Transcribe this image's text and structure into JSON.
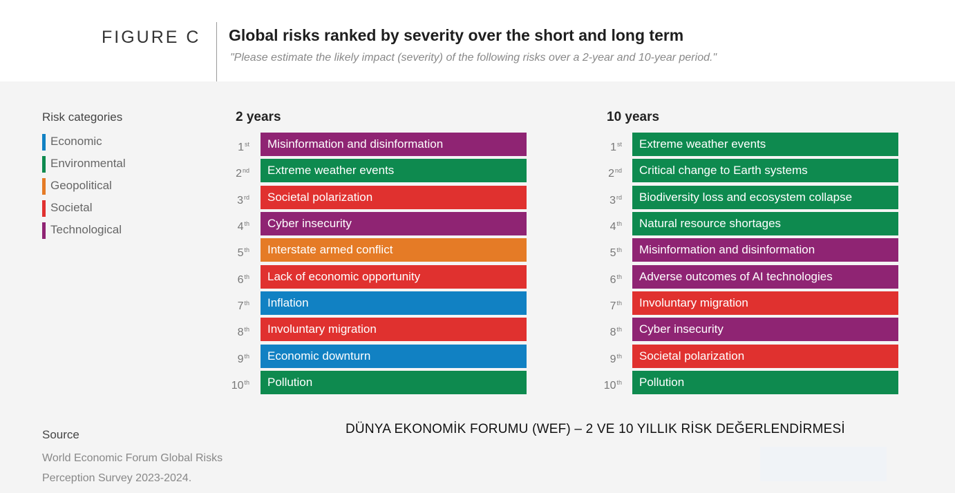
{
  "header": {
    "figure_label": "FIGURE C",
    "title": "Global risks ranked by severity over the short and long term",
    "subtitle": "\"Please estimate the likely impact (severity) of the following risks over a 2-year and 10-year period.\""
  },
  "legend": {
    "title": "Risk categories",
    "items": [
      {
        "label": "Economic",
        "color": "#1181c3"
      },
      {
        "label": "Environmental",
        "color": "#0e8a4f"
      },
      {
        "label": "Geopolitical",
        "color": "#e57b26"
      },
      {
        "label": "Societal",
        "color": "#e0312f"
      },
      {
        "label": "Technological",
        "color": "#8f2473"
      }
    ]
  },
  "chart_data": {
    "type": "table",
    "columns": [
      {
        "title": "2 years",
        "rows": [
          {
            "rank": "1",
            "suffix": "st",
            "label": "Misinformation and disinformation",
            "category": "Technological"
          },
          {
            "rank": "2",
            "suffix": "nd",
            "label": "Extreme weather events",
            "category": "Environmental"
          },
          {
            "rank": "3",
            "suffix": "rd",
            "label": "Societal polarization",
            "category": "Societal"
          },
          {
            "rank": "4",
            "suffix": "th",
            "label": "Cyber insecurity",
            "category": "Technological"
          },
          {
            "rank": "5",
            "suffix": "th",
            "label": "Interstate armed conflict",
            "category": "Geopolitical"
          },
          {
            "rank": "6",
            "suffix": "th",
            "label": "Lack of economic opportunity",
            "category": "Societal"
          },
          {
            "rank": "7",
            "suffix": "th",
            "label": "Inflation",
            "category": "Economic"
          },
          {
            "rank": "8",
            "suffix": "th",
            "label": "Involuntary migration",
            "category": "Societal"
          },
          {
            "rank": "9",
            "suffix": "th",
            "label": "Economic downturn",
            "category": "Economic"
          },
          {
            "rank": "10",
            "suffix": "th",
            "label": "Pollution",
            "category": "Environmental"
          }
        ]
      },
      {
        "title": "10 years",
        "rows": [
          {
            "rank": "1",
            "suffix": "st",
            "label": "Extreme weather events",
            "category": "Environmental"
          },
          {
            "rank": "2",
            "suffix": "nd",
            "label": "Critical change to Earth systems",
            "category": "Environmental"
          },
          {
            "rank": "3",
            "suffix": "rd",
            "label": "Biodiversity loss and ecosystem collapse",
            "category": "Environmental"
          },
          {
            "rank": "4",
            "suffix": "th",
            "label": "Natural resource shortages",
            "category": "Environmental"
          },
          {
            "rank": "5",
            "suffix": "th",
            "label": "Misinformation and disinformation",
            "category": "Technological"
          },
          {
            "rank": "6",
            "suffix": "th",
            "label": "Adverse outcomes of AI technologies",
            "category": "Technological"
          },
          {
            "rank": "7",
            "suffix": "th",
            "label": "Involuntary migration",
            "category": "Societal"
          },
          {
            "rank": "8",
            "suffix": "th",
            "label": "Cyber insecurity",
            "category": "Technological"
          },
          {
            "rank": "9",
            "suffix": "th",
            "label": "Societal polarization",
            "category": "Societal"
          },
          {
            "rank": "10",
            "suffix": "th",
            "label": "Pollution",
            "category": "Environmental"
          }
        ]
      }
    ]
  },
  "source": {
    "title": "Source",
    "lines": [
      "World Economic Forum Global Risks",
      "Perception Survey 2023-2024."
    ]
  },
  "watermark": "DÜNYA EKONOMİK FORUMU (WEF) – 2 VE 10 YILLIK RİSK DEĞERLENDİRMESİ"
}
